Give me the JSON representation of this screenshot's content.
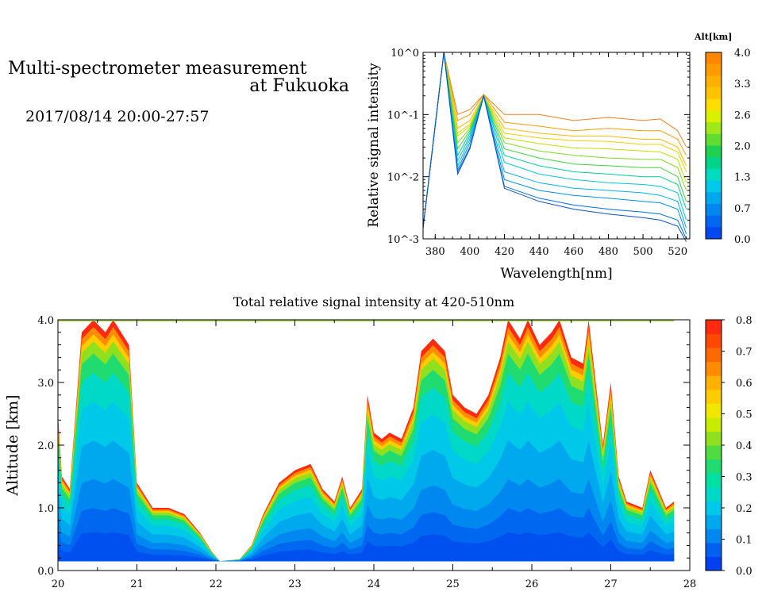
{
  "header": {
    "title_line1": "Multi-spectrometer measurement",
    "title_line2": "at Fukuoka",
    "datetime": "2017/08/14 20:00-27:57"
  },
  "colorbar_top": {
    "label": "Alt[km]",
    "ticks": [
      "4.0",
      "3.3",
      "2.6",
      "2.0",
      "1.3",
      "0.7",
      "0.0"
    ],
    "colors": [
      "#ff8800",
      "#ff9a00",
      "#ffb000",
      "#ffc400",
      "#ffdd00",
      "#d9f000",
      "#a0e81a",
      "#60dd30",
      "#20d050",
      "#00d48a",
      "#00dcc0",
      "#00c8e8",
      "#00a8ee",
      "#0088f0",
      "#0068f0",
      "#0048f0"
    ]
  },
  "colorbar_bottom": {
    "ticks": [
      "0.8",
      "0.7",
      "0.6",
      "0.5",
      "0.4",
      "0.3",
      "0.2",
      "0.1",
      "0.0"
    ],
    "colors": [
      "#0040f0",
      "#0060f0",
      "#0088f0",
      "#00a8ee",
      "#00c8e8",
      "#00d8c8",
      "#00e0a0",
      "#20dc70",
      "#50dc40",
      "#90e020",
      "#c8ec00",
      "#f0e800",
      "#ffcc00",
      "#ffb000",
      "#ff8c00",
      "#ff6a00",
      "#ff4800",
      "#ff2a10"
    ]
  },
  "chart_data": [
    {
      "type": "line",
      "title": "",
      "xlabel": "Wavelength[nm]",
      "ylabel": "Relative signal intensity",
      "xlim": [
        373,
        527
      ],
      "ylim": [
        0.001,
        1
      ],
      "y_scale": "log",
      "x_ticks": [
        380,
        400,
        420,
        440,
        460,
        480,
        500,
        520
      ],
      "x_tick_labels": [
        "380",
        "400",
        "420",
        "440",
        "460",
        "480",
        "500",
        "520"
      ],
      "y_tick_labels": [
        "10^0",
        "10^-1",
        "10^-2",
        "10^-3"
      ],
      "legend": "colorbar Alt[km] 0.0-4.0 on right",
      "x": [
        373,
        385,
        393,
        400,
        408,
        420,
        440,
        460,
        480,
        500,
        510,
        520,
        525
      ],
      "series": [
        {
          "name": "4.0",
          "color": "#f08020",
          "values": [
            0.0015,
            1.0,
            0.1,
            0.12,
            0.21,
            0.1,
            0.1,
            0.08,
            0.09,
            0.08,
            0.085,
            0.055,
            0.03
          ]
        },
        {
          "name": "3.7",
          "color": "#f0a000",
          "values": [
            0.0015,
            1.0,
            0.08,
            0.1,
            0.21,
            0.075,
            0.065,
            0.055,
            0.06,
            0.055,
            0.055,
            0.04,
            0.022
          ]
        },
        {
          "name": "3.3",
          "color": "#ffb800",
          "values": [
            0.0015,
            1.0,
            0.06,
            0.08,
            0.2,
            0.06,
            0.05,
            0.045,
            0.045,
            0.04,
            0.04,
            0.03,
            0.015
          ]
        },
        {
          "name": "3.0",
          "color": "#f0d000",
          "values": [
            0.0015,
            1.0,
            0.05,
            0.07,
            0.2,
            0.05,
            0.042,
            0.038,
            0.037,
            0.033,
            0.033,
            0.025,
            0.012
          ]
        },
        {
          "name": "2.6",
          "color": "#c0e000",
          "values": [
            0.0015,
            1.0,
            0.045,
            0.065,
            0.2,
            0.042,
            0.034,
            0.029,
            0.028,
            0.026,
            0.025,
            0.019,
            0.008
          ]
        },
        {
          "name": "2.3",
          "color": "#80d820",
          "values": [
            0.0015,
            1.0,
            0.035,
            0.06,
            0.2,
            0.035,
            0.026,
            0.022,
            0.02,
            0.019,
            0.019,
            0.014,
            0.006
          ]
        },
        {
          "name": "2.0",
          "color": "#40d040",
          "values": [
            0.0015,
            1.0,
            0.028,
            0.055,
            0.2,
            0.028,
            0.02,
            0.016,
            0.015,
            0.014,
            0.014,
            0.01,
            0.004
          ]
        },
        {
          "name": "1.6",
          "color": "#00d090",
          "values": [
            0.0015,
            1.0,
            0.022,
            0.05,
            0.2,
            0.022,
            0.015,
            0.012,
            0.011,
            0.01,
            0.01,
            0.0075,
            0.003
          ]
        },
        {
          "name": "1.3",
          "color": "#00c8d0",
          "values": [
            0.0015,
            1.0,
            0.018,
            0.045,
            0.2,
            0.017,
            0.011,
            0.009,
            0.008,
            0.0075,
            0.007,
            0.0055,
            0.002
          ]
        },
        {
          "name": "1.0",
          "color": "#00b0e8",
          "values": [
            0.0015,
            1.0,
            0.015,
            0.04,
            0.2,
            0.012,
            0.008,
            0.0065,
            0.006,
            0.0055,
            0.005,
            0.004,
            0.0015
          ]
        },
        {
          "name": "0.7",
          "color": "#0090e8",
          "values": [
            0.0015,
            1.0,
            0.013,
            0.035,
            0.2,
            0.009,
            0.006,
            0.005,
            0.0045,
            0.004,
            0.0038,
            0.003,
            0.0012
          ]
        },
        {
          "name": "0.3",
          "color": "#0070e0",
          "values": [
            0.0015,
            1.0,
            0.012,
            0.03,
            0.2,
            0.007,
            0.0045,
            0.0035,
            0.003,
            0.0027,
            0.0025,
            0.002,
            0.001
          ]
        },
        {
          "name": "0.0",
          "color": "#1050c0",
          "values": [
            0.0015,
            1.0,
            0.011,
            0.028,
            0.2,
            0.0065,
            0.004,
            0.003,
            0.0025,
            0.0022,
            0.002,
            0.0016,
            0.0009
          ]
        }
      ]
    },
    {
      "type": "heatmap",
      "title": "Total relative signal intensity at 420-510nm",
      "xlabel": "",
      "ylabel": "Altitude [km]",
      "xlim": [
        20,
        28
      ],
      "ylim": [
        0,
        4
      ],
      "x_ticks": [
        20,
        21,
        22,
        23,
        24,
        25,
        26,
        27,
        28
      ],
      "x_tick_labels": [
        "20",
        "21",
        "22",
        "23",
        "24",
        "25",
        "26",
        "27",
        "28"
      ],
      "y_ticks": [
        0,
        1,
        2,
        3,
        4
      ],
      "y_tick_labels": [
        "0.0",
        "1.0",
        "2.0",
        "3.0",
        "4.0"
      ],
      "zlim": [
        0,
        0.8
      ],
      "colorbar": "right",
      "data_x_end": 27.8,
      "data_y_start": 0.15,
      "top_profile": [
        [
          20.0,
          2.5
        ],
        [
          20.05,
          1.5
        ],
        [
          20.15,
          1.3
        ],
        [
          20.3,
          3.8
        ],
        [
          20.45,
          4.0
        ],
        [
          20.6,
          3.8
        ],
        [
          20.7,
          4.0
        ],
        [
          20.9,
          3.6
        ],
        [
          21.0,
          1.4
        ],
        [
          21.2,
          1.0
        ],
        [
          21.4,
          1.0
        ],
        [
          21.6,
          0.9
        ],
        [
          21.8,
          0.6
        ],
        [
          21.95,
          0.3
        ],
        [
          22.05,
          0.15
        ],
        [
          22.3,
          0.18
        ],
        [
          22.45,
          0.4
        ],
        [
          22.6,
          0.9
        ],
        [
          22.8,
          1.4
        ],
        [
          23.0,
          1.6
        ],
        [
          23.2,
          1.7
        ],
        [
          23.35,
          1.3
        ],
        [
          23.5,
          1.1
        ],
        [
          23.6,
          1.5
        ],
        [
          23.7,
          1.0
        ],
        [
          23.85,
          1.3
        ],
        [
          23.92,
          2.8
        ],
        [
          24.0,
          2.2
        ],
        [
          24.1,
          2.1
        ],
        [
          24.2,
          2.2
        ],
        [
          24.35,
          2.1
        ],
        [
          24.5,
          2.6
        ],
        [
          24.6,
          3.5
        ],
        [
          24.75,
          3.7
        ],
        [
          24.9,
          3.5
        ],
        [
          25.0,
          2.8
        ],
        [
          25.15,
          2.6
        ],
        [
          25.3,
          2.5
        ],
        [
          25.45,
          2.8
        ],
        [
          25.6,
          3.4
        ],
        [
          25.7,
          4.0
        ],
        [
          25.85,
          3.7
        ],
        [
          25.95,
          4.0
        ],
        [
          26.1,
          3.6
        ],
        [
          26.25,
          3.8
        ],
        [
          26.35,
          4.0
        ],
        [
          26.5,
          3.4
        ],
        [
          26.65,
          3.3
        ],
        [
          26.72,
          4.0
        ],
        [
          26.8,
          3.1
        ],
        [
          26.9,
          2.0
        ],
        [
          27.0,
          3.0
        ],
        [
          27.1,
          1.5
        ],
        [
          27.2,
          1.1
        ],
        [
          27.4,
          1.0
        ],
        [
          27.5,
          1.6
        ],
        [
          27.6,
          1.3
        ],
        [
          27.7,
          1.0
        ],
        [
          27.8,
          1.1
        ]
      ]
    }
  ]
}
